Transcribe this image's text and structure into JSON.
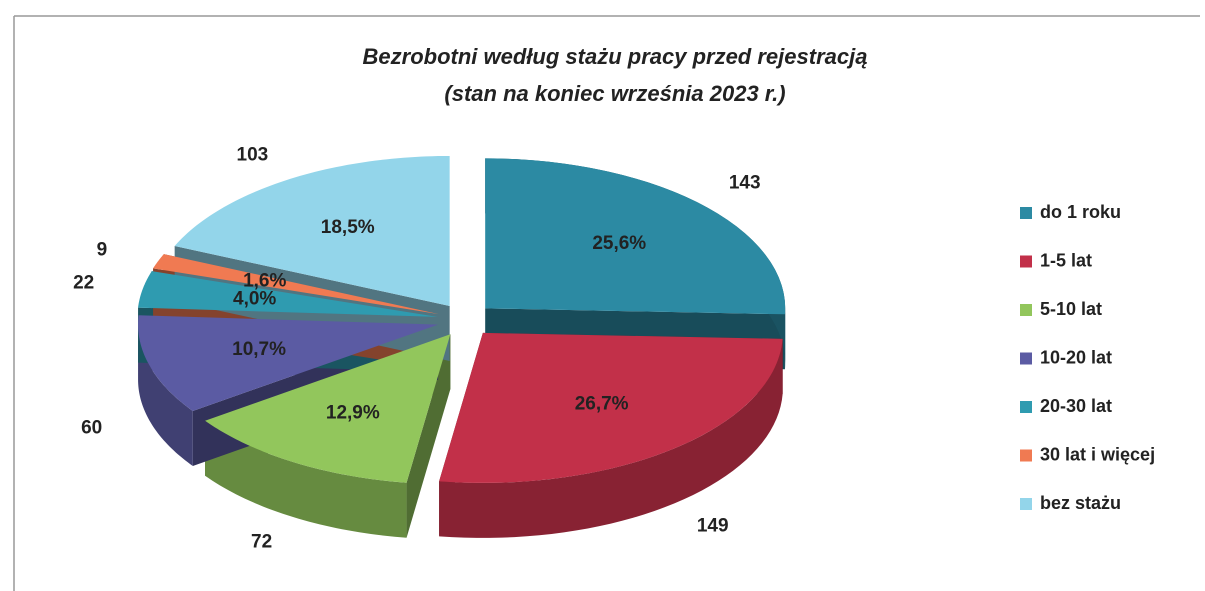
{
  "chart_data": {
    "type": "pie3d",
    "title": "Bezrobotni według stażu pracy przed rejestracją",
    "subtitle": "(stan na koniec września 2023 r.)",
    "categories": [
      "do 1 roku",
      "1-5 lat",
      "5-10 lat",
      "10-20 lat",
      "20-30 lat",
      "30 lat i więcej",
      "bez stażu"
    ],
    "values": [
      143,
      149,
      72,
      60,
      22,
      9,
      103
    ],
    "percentages": [
      25.6,
      26.7,
      12.9,
      10.7,
      4.0,
      1.6,
      18.5
    ],
    "percentage_labels": [
      "25,6%",
      "26,7%",
      "12,9%",
      "10,7%",
      "4,0%",
      "1,6%",
      "18,5%"
    ],
    "colors": [
      "#2c8aa3",
      "#c23049",
      "#92c65c",
      "#5b5ba3",
      "#2f9bb0",
      "#f07a52",
      "#93d5ea"
    ],
    "legend": "right"
  }
}
